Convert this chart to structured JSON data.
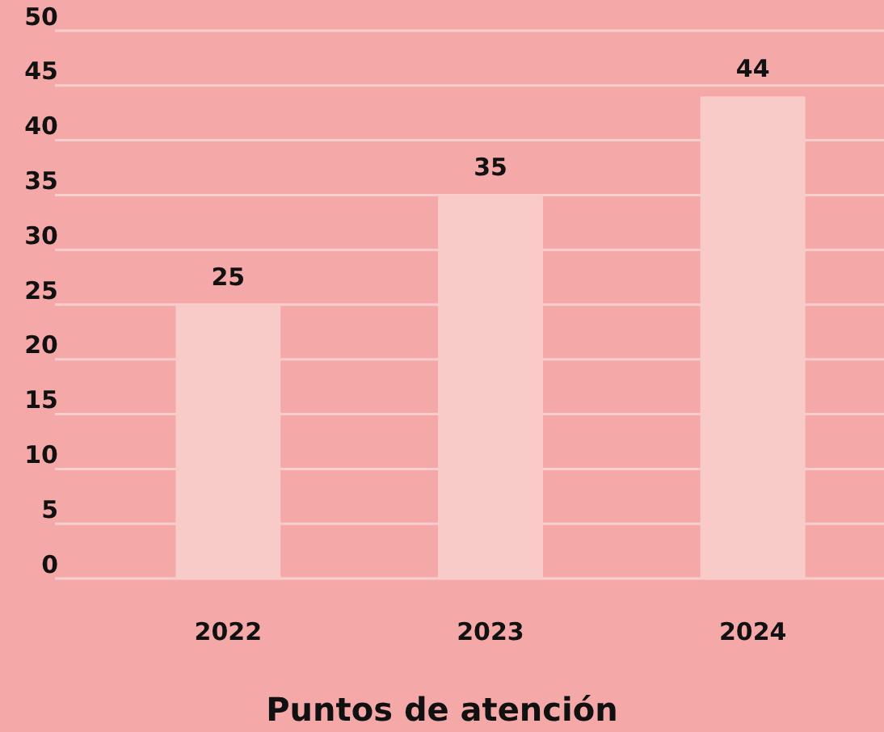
{
  "chart_data": {
    "type": "bar",
    "xlabel": "Puntos de atención",
    "categories": [
      "2022",
      "2023",
      "2024"
    ],
    "values": [
      25,
      35,
      44
    ],
    "color": "#f9cbc8",
    "ylim": [
      0,
      50
    ],
    "yticks": [
      0,
      5,
      10,
      15,
      20,
      25,
      30,
      35,
      40,
      45,
      50
    ],
    "grid": "y",
    "data_labels": true
  }
}
